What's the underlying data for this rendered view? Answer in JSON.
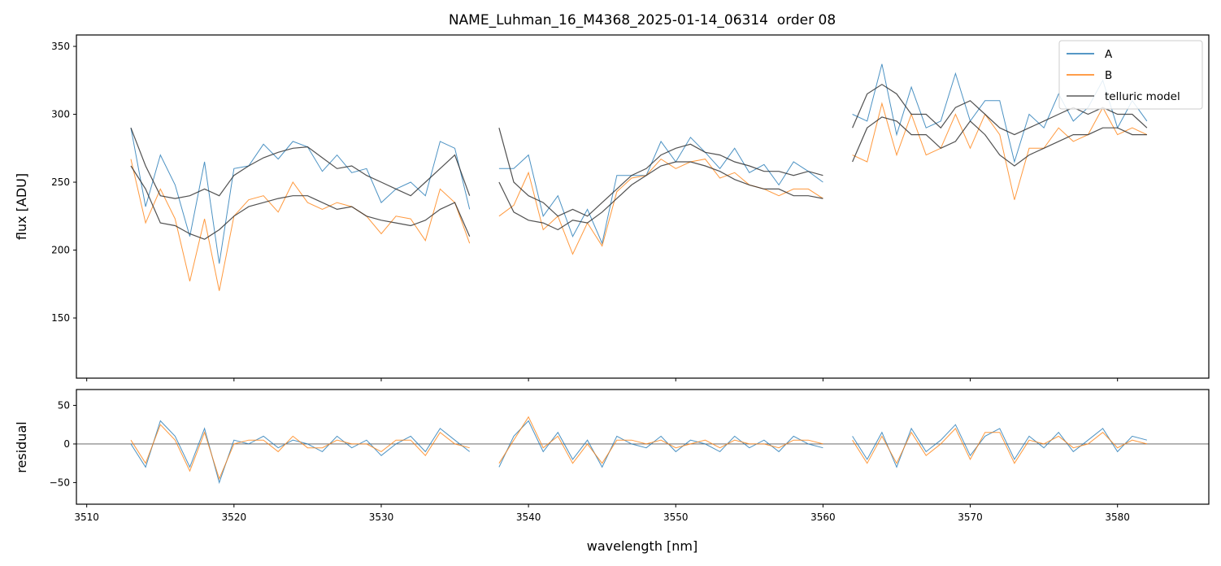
{
  "chart_data": {
    "type": "line",
    "title": "NAME_Luhman_16_M4368_2025-01-14_06314  order 08",
    "xlabel": "wavelength [nm]",
    "panels": [
      {
        "ylabel": "flux [ADU]",
        "ylim": [
          105.7,
          358.4
        ],
        "yticks": [
          150,
          200,
          250,
          300,
          350
        ]
      },
      {
        "ylabel": "residual",
        "ylim": [
          -78,
          70.5
        ],
        "yticks": [
          -50,
          0,
          50
        ],
        "zero_line": true
      }
    ],
    "xlim": [
      3509.3,
      3586.2
    ],
    "xticks": [
      3510,
      3520,
      3530,
      3540,
      3550,
      3560,
      3570,
      3580
    ],
    "legend": {
      "placement": "top-right",
      "entries": [
        "A",
        "B",
        "telluric model"
      ]
    },
    "colors": {
      "A": "#1f77b4",
      "B": "#ff7f0e",
      "model": "#333333"
    },
    "segments": [
      {
        "x": [
          3513,
          3514,
          3515,
          3516,
          3517,
          3518,
          3519,
          3520,
          3521,
          3522,
          3523,
          3524,
          3525,
          3526,
          3527,
          3528,
          3529,
          3530,
          3531,
          3532,
          3533,
          3534,
          3535,
          3536
        ],
        "flux_A": [
          290,
          232,
          270,
          248,
          210,
          265,
          190,
          260,
          262,
          278,
          267,
          280,
          276,
          258,
          270,
          257,
          260,
          235,
          245,
          250,
          240,
          280,
          275,
          230
        ],
        "flux_B": [
          267,
          220,
          245,
          223,
          177,
          223,
          170,
          225,
          237,
          240,
          228,
          250,
          235,
          230,
          235,
          232,
          225,
          212,
          225,
          223,
          207,
          245,
          235,
          205
        ],
        "model_A": [
          290,
          262,
          240,
          238,
          240,
          245,
          240,
          255,
          262,
          268,
          272,
          275,
          276,
          268,
          260,
          262,
          255,
          250,
          245,
          240,
          250,
          260,
          270,
          240
        ],
        "model_B": [
          262,
          245,
          220,
          218,
          212,
          208,
          215,
          225,
          232,
          235,
          238,
          240,
          240,
          235,
          230,
          232,
          225,
          222,
          220,
          218,
          222,
          230,
          235,
          210
        ],
        "residual_A": [
          0,
          -30,
          30,
          10,
          -30,
          20,
          -50,
          5,
          0,
          10,
          -5,
          5,
          0,
          -10,
          10,
          -5,
          5,
          -15,
          0,
          10,
          -10,
          20,
          5,
          -10
        ],
        "residual_B": [
          5,
          -25,
          25,
          5,
          -35,
          15,
          -45,
          0,
          5,
          5,
          -10,
          10,
          -5,
          -5,
          5,
          0,
          0,
          -10,
          5,
          5,
          -15,
          15,
          0,
          -5
        ]
      },
      {
        "x": [
          3538,
          3539,
          3540,
          3541,
          3542,
          3543,
          3544,
          3545,
          3546,
          3547,
          3548,
          3549,
          3550,
          3551,
          3552,
          3553,
          3554,
          3555,
          3556,
          3557,
          3558,
          3559,
          3560
        ],
        "flux_A": [
          260,
          260,
          270,
          225,
          240,
          210,
          230,
          205,
          255,
          255,
          255,
          280,
          265,
          283,
          272,
          260,
          275,
          257,
          263,
          248,
          265,
          258,
          250
        ],
        "flux_B": [
          225,
          233,
          257,
          215,
          225,
          197,
          220,
          203,
          243,
          253,
          255,
          267,
          260,
          265,
          267,
          253,
          257,
          248,
          245,
          240,
          245,
          245,
          238
        ],
        "model_A": [
          290,
          250,
          240,
          235,
          225,
          230,
          225,
          235,
          245,
          255,
          260,
          270,
          275,
          278,
          272,
          270,
          265,
          262,
          258,
          258,
          255,
          258,
          255
        ],
        "model_B": [
          250,
          228,
          222,
          220,
          215,
          222,
          220,
          228,
          238,
          248,
          255,
          262,
          265,
          265,
          262,
          258,
          252,
          248,
          245,
          245,
          240,
          240,
          238
        ],
        "residual_A": [
          -30,
          10,
          30,
          -10,
          15,
          -20,
          5,
          -30,
          10,
          0,
          -5,
          10,
          -10,
          5,
          0,
          -10,
          10,
          -5,
          5,
          -10,
          10,
          0,
          -5
        ],
        "residual_B": [
          -25,
          5,
          35,
          -5,
          10,
          -25,
          0,
          -25,
          5,
          5,
          0,
          5,
          -5,
          0,
          5,
          -5,
          5,
          0,
          0,
          -5,
          5,
          5,
          0
        ]
      },
      {
        "x": [
          3562,
          3563,
          3564,
          3565,
          3566,
          3567,
          3568,
          3569,
          3570,
          3571,
          3572,
          3573,
          3574,
          3575,
          3576,
          3577,
          3578,
          3579,
          3580,
          3581,
          3582
        ],
        "flux_A": [
          300,
          295,
          337,
          285,
          320,
          290,
          295,
          330,
          295,
          310,
          310,
          265,
          300,
          290,
          315,
          295,
          305,
          325,
          290,
          310,
          295
        ],
        "flux_B": [
          270,
          265,
          308,
          270,
          300,
          270,
          275,
          300,
          275,
          300,
          285,
          237,
          275,
          275,
          290,
          280,
          285,
          305,
          285,
          290,
          285
        ],
        "model_A": [
          290,
          315,
          322,
          315,
          300,
          300,
          290,
          305,
          310,
          300,
          290,
          285,
          290,
          295,
          300,
          305,
          300,
          305,
          300,
          300,
          290
        ],
        "model_B": [
          265,
          290,
          298,
          295,
          285,
          285,
          275,
          280,
          295,
          285,
          270,
          262,
          270,
          275,
          280,
          285,
          285,
          290,
          290,
          285,
          285
        ],
        "residual_A": [
          10,
          -20,
          15,
          -30,
          20,
          -10,
          5,
          25,
          -15,
          10,
          20,
          -20,
          10,
          -5,
          15,
          -10,
          5,
          20,
          -10,
          10,
          5
        ],
        "residual_B": [
          5,
          -25,
          10,
          -25,
          15,
          -15,
          0,
          20,
          -20,
          15,
          15,
          -25,
          5,
          0,
          10,
          -5,
          0,
          15,
          -5,
          5,
          0
        ]
      }
    ]
  }
}
